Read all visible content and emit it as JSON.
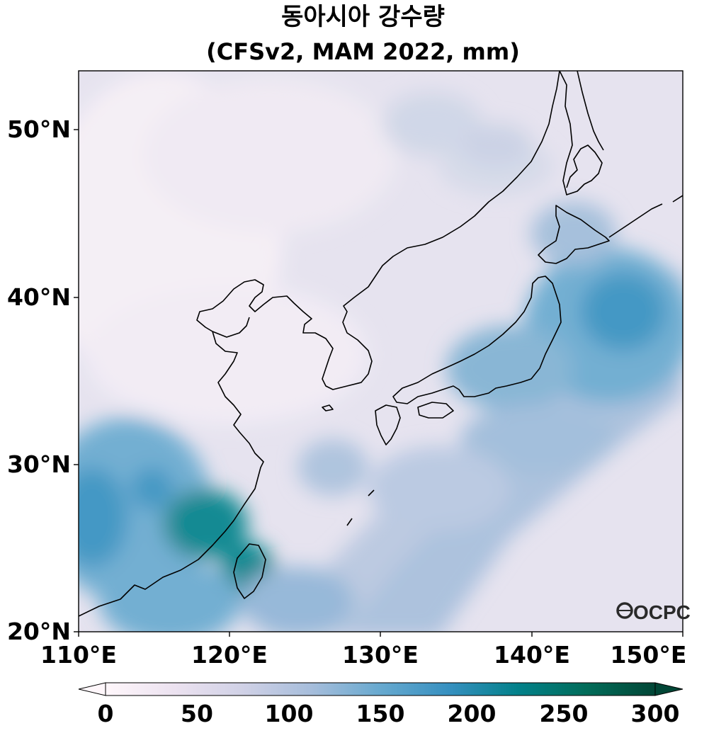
{
  "title": {
    "line1": "동아시아 강수량",
    "line2": "(CFSv2, MAM 2022, mm)"
  },
  "axes": {
    "lat_labels": [
      "50°N",
      "40°N",
      "30°N",
      "20°N"
    ],
    "lon_labels": [
      "110°E",
      "120°E",
      "130°E",
      "140°E",
      "150°E"
    ],
    "lat_range": [
      20,
      53.5
    ],
    "lon_range": [
      110,
      150
    ]
  },
  "colorbar": {
    "ticks": [
      "0",
      "50",
      "100",
      "150",
      "200",
      "250",
      "300"
    ],
    "range": [
      0,
      300
    ],
    "extend": "both",
    "colormap": "PuBuGn",
    "colors": [
      "#fff7fb",
      "#ece2f0",
      "#d0d1e6",
      "#a6bddb",
      "#67a9cf",
      "#3690c0",
      "#02818a",
      "#016c59",
      "#014636"
    ]
  },
  "logo": {
    "text": "OCPC"
  }
}
